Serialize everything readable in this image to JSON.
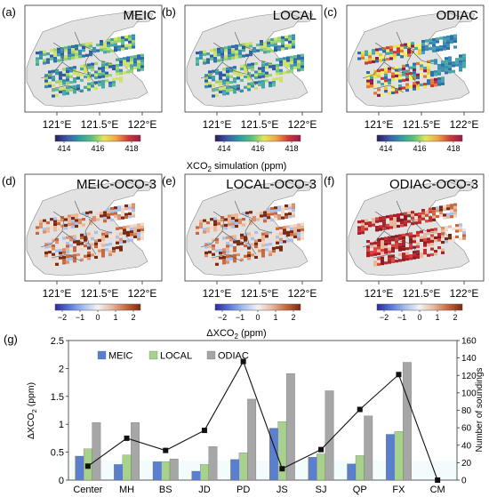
{
  "maps": [
    {
      "letter": "(a)",
      "title": "MEIC",
      "ticks": [
        "121°E",
        "121.5°E",
        "122°E"
      ],
      "mode": "abs"
    },
    {
      "letter": "(b)",
      "title": "LOCAL",
      "ticks": [
        "121°E",
        "121.5°E",
        "122°E"
      ],
      "mode": "abs"
    },
    {
      "letter": "(c)",
      "title": "ODIAC",
      "ticks": [
        "121°E",
        "121.5°E",
        "122°E"
      ],
      "mode": "abs_hot"
    },
    {
      "letter": "(d)",
      "title": "MEIC-OCO-3",
      "ticks": [
        "121°E",
        "121.5°E",
        "122°E"
      ],
      "mode": "diff"
    },
    {
      "letter": "(e)",
      "title": "LOCAL-OCO-3",
      "ticks": [
        "121°E",
        "121.5°E",
        "122°E"
      ],
      "mode": "diff"
    },
    {
      "letter": "(f)",
      "title": "ODIAC-OCO-3",
      "ticks": [
        "121°E",
        "121.5°E",
        "122°E"
      ],
      "mode": "diff_hot"
    }
  ],
  "colorbar_top": {
    "ticks": [
      "414",
      "416",
      "418"
    ],
    "colors": [
      "#2b1a5e",
      "#3b5aa8",
      "#2f9c9e",
      "#5cc07a",
      "#e8e55a",
      "#f0a34a",
      "#cc3b3b",
      "#8e1f4a"
    ]
  },
  "colorbar_top_label": {
    "pre": "XCO",
    "sub": "2",
    "post": " simulation (ppm)"
  },
  "colorbar_bottom": {
    "ticks": [
      "−2",
      "−1",
      "0",
      "1",
      "2"
    ],
    "colors": [
      "#2a2aa0",
      "#5a78d8",
      "#a8c0ec",
      "#f3f3f3",
      "#e8b79a",
      "#c7683c",
      "#7a2a10"
    ]
  },
  "colorbar_bottom_label": {
    "pre": "ΔXCO",
    "sub": "2",
    "post": " (ppm)"
  },
  "chart_letter": "(g)",
  "chart_data": {
    "type": "bar",
    "categories": [
      "Center",
      "MH",
      "BS",
      "JD",
      "PD",
      "JS",
      "SJ",
      "QP",
      "FX",
      "CM"
    ],
    "series": [
      {
        "name": "MEIC",
        "color": "#5a7fcf",
        "values": [
          0.43,
          0.28,
          0.33,
          0.16,
          0.37,
          0.93,
          0.41,
          0.29,
          0.82,
          0
        ]
      },
      {
        "name": "LOCAL",
        "color": "#a9d18e",
        "values": [
          0.56,
          0.45,
          0.33,
          0.28,
          0.49,
          1.05,
          0.47,
          0.44,
          0.87,
          0
        ]
      },
      {
        "name": "ODIAC",
        "color": "#a6a6a6",
        "values": [
          1.03,
          1.03,
          0.38,
          0.6,
          1.45,
          1.91,
          1.6,
          1.15,
          2.11,
          0
        ]
      }
    ],
    "line": {
      "name": "Number of soundings",
      "axis": "right",
      "values": [
        16,
        48,
        34,
        57,
        136,
        13,
        35,
        81,
        121,
        0
      ]
    },
    "ylabel": {
      "pre": "ΔXCO",
      "sub": "2",
      "post": " (ppm)"
    },
    "ylabel_right": "Number of soundings",
    "ylim": [
      0,
      2.5
    ],
    "ylim_right": [
      0,
      160
    ],
    "yticks": [
      "0",
      "0.5",
      "1",
      "1.5",
      "2",
      "2.5"
    ],
    "yticks_right": [
      "0",
      "20",
      "40",
      "60",
      "80",
      "100",
      "120",
      "140",
      "160"
    ],
    "legend_position": "top-left"
  }
}
